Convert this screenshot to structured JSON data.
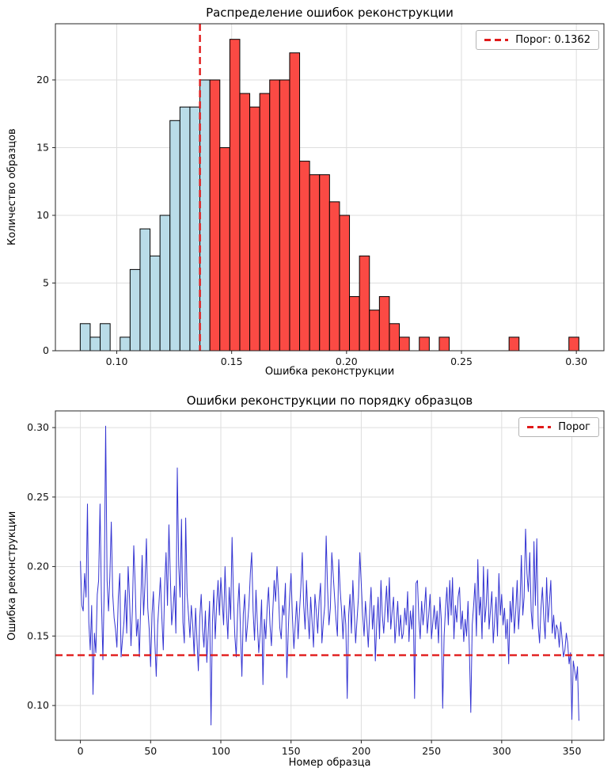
{
  "figure": {
    "background": "#ffffff"
  },
  "chart_data": [
    {
      "type": "histogram",
      "title": "Распределение ошибок реконструкции",
      "xlabel": "Ошибка реконструкции",
      "ylabel": "Количество образцов",
      "legend": [
        {
          "label": "Порог: 0.1362",
          "style": "dashed",
          "color": "#e01a1a"
        }
      ],
      "threshold": 0.1362,
      "bin_start": 0.0841,
      "bin_width": 0.00434,
      "counts": [
        2,
        1,
        2,
        0,
        1,
        6,
        9,
        7,
        10,
        17,
        18,
        18,
        20,
        20,
        15,
        23,
        19,
        18,
        19,
        20,
        20,
        22,
        14,
        13,
        13,
        11,
        10,
        4,
        7,
        3,
        4,
        2,
        1,
        0,
        1,
        0,
        1,
        0,
        0,
        0,
        0,
        0,
        0,
        1,
        0,
        0,
        0,
        0,
        0,
        1
      ],
      "xlim": [
        0.0733,
        0.312
      ],
      "ylim": [
        0,
        24.15
      ],
      "xticks": [
        0.1,
        0.15,
        0.2,
        0.25,
        0.3
      ],
      "xtick_labels": [
        "0.10",
        "0.15",
        "0.20",
        "0.25",
        "0.30"
      ],
      "yticks": [
        0,
        5,
        10,
        15,
        20
      ],
      "ytick_labels": [
        "0",
        "5",
        "10",
        "15",
        "20"
      ],
      "grid": true,
      "legend_position": "upper right",
      "colors": {
        "below_threshold": "#b9dce8",
        "above_threshold": "#fb4a44",
        "edge": "#000000",
        "threshold_line": "#e01a1a",
        "grid": "#dedede"
      }
    },
    {
      "type": "line",
      "title": "Ошибки реконструкции по порядку образцов",
      "xlabel": "Номер образца",
      "ylabel": "Ошибка реконструкции",
      "legend": [
        {
          "label": "Порог",
          "style": "dashed",
          "color": "#e01a1a"
        }
      ],
      "threshold": 0.1362,
      "x_start": 0,
      "values": [
        0.204,
        0.172,
        0.168,
        0.195,
        0.178,
        0.245,
        0.16,
        0.14,
        0.172,
        0.108,
        0.152,
        0.138,
        0.18,
        0.19,
        0.245,
        0.175,
        0.133,
        0.185,
        0.301,
        0.19,
        0.168,
        0.193,
        0.232,
        0.18,
        0.163,
        0.155,
        0.142,
        0.178,
        0.195,
        0.135,
        0.148,
        0.16,
        0.183,
        0.152,
        0.2,
        0.176,
        0.143,
        0.168,
        0.215,
        0.187,
        0.15,
        0.162,
        0.135,
        0.176,
        0.208,
        0.165,
        0.188,
        0.22,
        0.17,
        0.155,
        0.128,
        0.166,
        0.182,
        0.147,
        0.121,
        0.158,
        0.174,
        0.192,
        0.163,
        0.14,
        0.185,
        0.21,
        0.172,
        0.23,
        0.195,
        0.158,
        0.17,
        0.186,
        0.152,
        0.271,
        0.201,
        0.178,
        0.234,
        0.16,
        0.145,
        0.235,
        0.18,
        0.165,
        0.149,
        0.172,
        0.158,
        0.136,
        0.17,
        0.148,
        0.125,
        0.163,
        0.18,
        0.155,
        0.142,
        0.168,
        0.131,
        0.152,
        0.175,
        0.086,
        0.16,
        0.183,
        0.148,
        0.172,
        0.19,
        0.165,
        0.192,
        0.175,
        0.158,
        0.2,
        0.168,
        0.148,
        0.185,
        0.162,
        0.221,
        0.178,
        0.15,
        0.135,
        0.17,
        0.188,
        0.154,
        0.121,
        0.166,
        0.18,
        0.146,
        0.158,
        0.172,
        0.195,
        0.21,
        0.168,
        0.147,
        0.183,
        0.16,
        0.138,
        0.152,
        0.176,
        0.115,
        0.162,
        0.148,
        0.17,
        0.185,
        0.158,
        0.143,
        0.167,
        0.19,
        0.175,
        0.2,
        0.182,
        0.156,
        0.148,
        0.172,
        0.165,
        0.188,
        0.12,
        0.154,
        0.178,
        0.195,
        0.163,
        0.141,
        0.158,
        0.175,
        0.148,
        0.168,
        0.185,
        0.21,
        0.172,
        0.155,
        0.19,
        0.165,
        0.148,
        0.178,
        0.16,
        0.142,
        0.18,
        0.168,
        0.152,
        0.175,
        0.188,
        0.145,
        0.16,
        0.172,
        0.222,
        0.185,
        0.158,
        0.17,
        0.21,
        0.195,
        0.178,
        0.162,
        0.15,
        0.205,
        0.183,
        0.168,
        0.148,
        0.172,
        0.158,
        0.105,
        0.165,
        0.18,
        0.152,
        0.19,
        0.168,
        0.145,
        0.162,
        0.178,
        0.21,
        0.188,
        0.165,
        0.15,
        0.175,
        0.16,
        0.142,
        0.168,
        0.185,
        0.155,
        0.172,
        0.132,
        0.158,
        0.178,
        0.148,
        0.19,
        0.165,
        0.152,
        0.17,
        0.186,
        0.16,
        0.192,
        0.155,
        0.168,
        0.178,
        0.145,
        0.16,
        0.175,
        0.15,
        0.165,
        0.148,
        0.152,
        0.17,
        0.158,
        0.182,
        0.146,
        0.168,
        0.155,
        0.172,
        0.105,
        0.188,
        0.19,
        0.162,
        0.148,
        0.175,
        0.158,
        0.17,
        0.185,
        0.152,
        0.165,
        0.18,
        0.148,
        0.16,
        0.172,
        0.155,
        0.168,
        0.145,
        0.178,
        0.162,
        0.098,
        0.15,
        0.17,
        0.185,
        0.158,
        0.19,
        0.165,
        0.192,
        0.148,
        0.172,
        0.16,
        0.178,
        0.185,
        0.155,
        0.168,
        0.146,
        0.162,
        0.15,
        0.175,
        0.14,
        0.095,
        0.158,
        0.172,
        0.188,
        0.15,
        0.205,
        0.165,
        0.178,
        0.148,
        0.2,
        0.16,
        0.172,
        0.198,
        0.155,
        0.168,
        0.182,
        0.145,
        0.162,
        0.178,
        0.15,
        0.195,
        0.165,
        0.18,
        0.158,
        0.17,
        0.148,
        0.162,
        0.13,
        0.175,
        0.16,
        0.185,
        0.152,
        0.168,
        0.19,
        0.155,
        0.172,
        0.208,
        0.165,
        0.178,
        0.227,
        0.195,
        0.182,
        0.21,
        0.168,
        0.155,
        0.218,
        0.172,
        0.22,
        0.158,
        0.145,
        0.17,
        0.185,
        0.162,
        0.148,
        0.192,
        0.16,
        0.175,
        0.19,
        0.152,
        0.165,
        0.148,
        0.158,
        0.155,
        0.142,
        0.16,
        0.148,
        0.135,
        0.14,
        0.152,
        0.145,
        0.13,
        0.138,
        0.09,
        0.132,
        0.125,
        0.118,
        0.128,
        0.089
      ],
      "xlim": [
        -17.8,
        372.8
      ],
      "ylim": [
        0.075,
        0.312
      ],
      "xticks": [
        0,
        50,
        100,
        150,
        200,
        250,
        300,
        350
      ],
      "xtick_labels": [
        "0",
        "50",
        "100",
        "150",
        "200",
        "250",
        "300",
        "350"
      ],
      "yticks": [
        0.1,
        0.15,
        0.2,
        0.25,
        0.3
      ],
      "ytick_labels": [
        "0.10",
        "0.15",
        "0.20",
        "0.25",
        "0.30"
      ],
      "grid": true,
      "legend_position": "upper right",
      "colors": {
        "line": "#3434d2",
        "threshold_line": "#e01a1a",
        "grid": "#dedede"
      }
    }
  ]
}
